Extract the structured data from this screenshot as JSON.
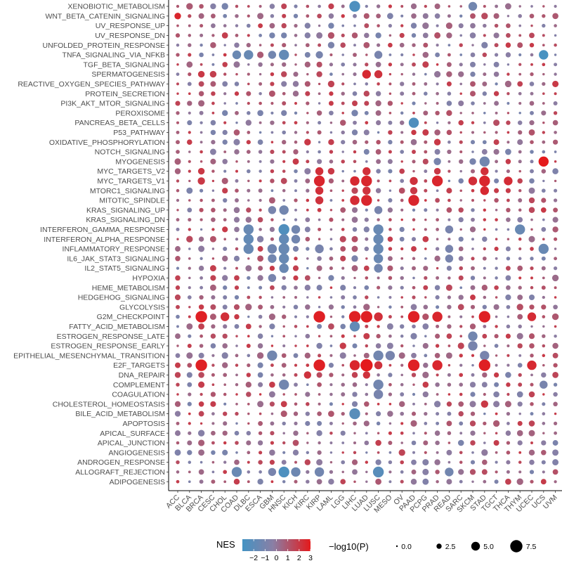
{
  "chart_data": {
    "type": "dotplot",
    "pathways": [
      "XENOBIOTIC_METABOLISM",
      "WNT_BETA_CATENIN_SIGNALING",
      "UV_RESPONSE_UP",
      "UV_RESPONSE_DN",
      "UNFOLDED_PROTEIN_RESPONSE",
      "TNFA_SIGNALING_VIA_NFKB",
      "TGF_BETA_SIGNALING",
      "SPERMATOGENESIS",
      "REACTIVE_OXYGEN_SPECIES_PATHWAY",
      "PROTEIN_SECRETION",
      "PI3K_AKT_MTOR_SIGNALING",
      "PEROXISOME",
      "PANCREAS_BETA_CELLS",
      "P53_PATHWAY",
      "OXIDATIVE_PHOSPHORYLATION",
      "NOTCH_SIGNALING",
      "MYOGENESIS",
      "MYC_TARGETS_V2",
      "MYC_TARGETS_V1",
      "MTORC1_SIGNALING",
      "MITOTIC_SPINDLE",
      "KRAS_SIGNALING_UP",
      "KRAS_SIGNALING_DN",
      "INTERFERON_GAMMA_RESPONSE",
      "INTERFERON_ALPHA_RESPONSE",
      "INFLAMMATORY_RESPONSE",
      "IL6_JAK_STAT3_SIGNALING",
      "IL2_STAT5_SIGNALING",
      "HYPOXIA",
      "HEME_METABOLISM",
      "HEDGEHOG_SIGNALING",
      "GLYCOLYSIS",
      "G2M_CHECKPOINT",
      "FATTY_ACID_METABOLISM",
      "ESTROGEN_RESPONSE_LATE",
      "ESTROGEN_RESPONSE_EARLY",
      "EPITHELIAL_MESENCHYMAL_TRANSITION",
      "E2F_TARGETS",
      "DNA_REPAIR",
      "COMPLEMENT",
      "COAGULATION",
      "CHOLESTEROL_HOMEOSTASIS",
      "BILE_ACID_METABOLISM",
      "APOPTOSIS",
      "APICAL_SURFACE",
      "APICAL_JUNCTION",
      "ANGIOGENESIS",
      "ANDROGEN_RESPONSE",
      "ALLOGRAFT_REJECTION",
      "ADIPOGENESIS"
    ],
    "cancers": [
      "ACC",
      "BLCA",
      "BRCA",
      "CESC",
      "CHOL",
      "COAD",
      "DLBC",
      "ESCA",
      "GBM",
      "HNSC",
      "KICH",
      "KIRC",
      "KIRP",
      "LAML",
      "LGG",
      "LIHC",
      "LUAD",
      "LUSC",
      "MESO",
      "OV",
      "PAAD",
      "PCPG",
      "PRAD",
      "READ",
      "SARC",
      "SKCM",
      "STAD",
      "TGCT",
      "THCA",
      "THYM",
      "UCEC",
      "UCS",
      "UVM"
    ],
    "highlights": [
      {
        "pathway": "XENOBIOTIC_METABOLISM",
        "cancer": "LIHC",
        "nes": -2.6,
        "p": 6.5
      },
      {
        "pathway": "XENOBIOTIC_METABOLISM",
        "cancer": "SKCM",
        "nes": -1.2,
        "p": 5.0
      },
      {
        "pathway": "XENOBIOTIC_METABOLISM",
        "cancer": "CHOL",
        "nes": -1.0,
        "p": 3.5
      },
      {
        "pathway": "WNT_BETA_CATENIN_SIGNALING",
        "cancer": "ACC",
        "nes": 2.6,
        "p": 3.5
      },
      {
        "pathway": "UV_RESPONSE_UP",
        "cancer": "LAML",
        "nes": -1.0,
        "p": 3.0
      },
      {
        "pathway": "UV_RESPONSE_UP",
        "cancer": "HNSC",
        "nes": 1.5,
        "p": 2.5
      },
      {
        "pathway": "UV_RESPONSE_DN",
        "cancer": "GBM",
        "nes": -1.0,
        "p": 3.0
      },
      {
        "pathway": "UV_RESPONSE_DN",
        "cancer": "HNSC",
        "nes": -1.0,
        "p": 3.0
      },
      {
        "pathway": "UV_RESPONSE_DN",
        "cancer": "LUSC",
        "nes": -1.0,
        "p": 3.0
      },
      {
        "pathway": "TNFA_SIGNALING_VIA_NFKB",
        "cancer": "UCS",
        "nes": -2.8,
        "p": 5.5
      },
      {
        "pathway": "TNFA_SIGNALING_VIA_NFKB",
        "cancer": "HNSC",
        "nes": -1.8,
        "p": 6.0
      },
      {
        "pathway": "TNFA_SIGNALING_VIA_NFKB",
        "cancer": "DLBC",
        "nes": -1.6,
        "p": 5.5
      },
      {
        "pathway": "TNFA_SIGNALING_VIA_NFKB",
        "cancer": "COAD",
        "nes": -1.5,
        "p": 5.0
      },
      {
        "pathway": "TNFA_SIGNALING_VIA_NFKB",
        "cancer": "GBM",
        "nes": -1.2,
        "p": 4.5
      },
      {
        "pathway": "TNFA_SIGNALING_VIA_NFKB",
        "cancer": "KIRP",
        "nes": -1.0,
        "p": 4.0
      },
      {
        "pathway": "TNFA_SIGNALING_VIA_NFKB",
        "cancer": "LUSC",
        "nes": -1.0,
        "p": 4.5
      },
      {
        "pathway": "SPERMATOGENESIS",
        "cancer": "LUAD",
        "nes": 2.5,
        "p": 5.0
      },
      {
        "pathway": "SPERMATOGENESIS",
        "cancer": "LUSC",
        "nes": 2.2,
        "p": 4.5
      },
      {
        "pathway": "SPERMATOGENESIS",
        "cancer": "BRCA",
        "nes": 2.0,
        "p": 3.5
      },
      {
        "pathway": "SPERMATOGENESIS",
        "cancer": "CESC",
        "nes": 1.8,
        "p": 3.5
      },
      {
        "pathway": "SPERMATOGENESIS",
        "cancer": "HNSC",
        "nes": 1.5,
        "p": 3.0
      },
      {
        "pathway": "SPERMATOGENESIS",
        "cancer": "KIRP",
        "nes": 1.5,
        "p": 3.0
      },
      {
        "pathway": "PROTEIN_SECRETION",
        "cancer": "LUAD",
        "nes": 1.5,
        "p": 3.0
      },
      {
        "pathway": "PEROXISOME",
        "cancer": "CHOL",
        "nes": -1.0,
        "p": 3.0
      },
      {
        "pathway": "PEROXISOME",
        "cancer": "LIHC",
        "nes": -1.0,
        "p": 3.5
      },
      {
        "pathway": "PANCREAS_BETA_CELLS",
        "cancer": "PAAD",
        "nes": -2.5,
        "p": 6.0
      },
      {
        "pathway": "OXIDATIVE_PHOSPHORYLATION",
        "cancer": "KIRC",
        "nes": 2.0,
        "p": 3.5
      },
      {
        "pathway": "OXIDATIVE_PHOSPHORYLATION",
        "cancer": "LAML",
        "nes": 1.8,
        "p": 3.0
      },
      {
        "pathway": "OXIDATIVE_PHOSPHORYLATION",
        "cancer": "PRAD",
        "nes": 2.0,
        "p": 3.5
      },
      {
        "pathway": "MYOGENESIS",
        "cancer": "UCS",
        "nes": 3.0,
        "p": 6.0
      },
      {
        "pathway": "MYOGENESIS",
        "cancer": "STAD",
        "nes": -1.2,
        "p": 6.0
      },
      {
        "pathway": "MYOGENESIS",
        "cancer": "PRAD",
        "nes": -1.0,
        "p": 4.0
      },
      {
        "pathway": "MYOGENESIS",
        "cancer": "SKCM",
        "nes": -1.0,
        "p": 3.5
      },
      {
        "pathway": "MYC_TARGETS_V2",
        "cancer": "KIRP",
        "nes": 2.3,
        "p": 4.5
      },
      {
        "pathway": "MYC_TARGETS_V2",
        "cancer": "LUAD",
        "nes": 2.3,
        "p": 4.5
      },
      {
        "pathway": "MYC_TARGETS_V2",
        "cancer": "STAD",
        "nes": 2.3,
        "p": 4.5
      },
      {
        "pathway": "MYC_TARGETS_V2",
        "cancer": "BRCA",
        "nes": 2.0,
        "p": 3.5
      },
      {
        "pathway": "MYC_TARGETS_V2",
        "cancer": "LAML",
        "nes": 2.0,
        "p": 3.5
      },
      {
        "pathway": "MYC_TARGETS_V2",
        "cancer": "PRAD",
        "nes": 2.0,
        "p": 3.5
      },
      {
        "pathway": "MYC_TARGETS_V1",
        "cancer": "KIRP",
        "nes": 2.6,
        "p": 6.5
      },
      {
        "pathway": "MYC_TARGETS_V1",
        "cancer": "LUAD",
        "nes": 2.6,
        "p": 6.5
      },
      {
        "pathway": "MYC_TARGETS_V1",
        "cancer": "PRAD",
        "nes": 2.6,
        "p": 6.5
      },
      {
        "pathway": "MYC_TARGETS_V1",
        "cancer": "STAD",
        "nes": 2.6,
        "p": 6.5
      },
      {
        "pathway": "MYC_TARGETS_V1",
        "cancer": "LIHC",
        "nes": 2.5,
        "p": 5.5
      },
      {
        "pathway": "MYC_TARGETS_V1",
        "cancer": "THCA",
        "nes": 2.4,
        "p": 5.0
      },
      {
        "pathway": "MYC_TARGETS_V1",
        "cancer": "SKCM",
        "nes": 2.3,
        "p": 5.0
      },
      {
        "pathway": "MYC_TARGETS_V1",
        "cancer": "PAAD",
        "nes": 2.2,
        "p": 4.5
      },
      {
        "pathway": "MYC_TARGETS_V1",
        "cancer": "BRCA",
        "nes": 2.0,
        "p": 4.0
      },
      {
        "pathway": "MTORC1_SIGNALING",
        "cancer": "STAD",
        "nes": 2.5,
        "p": 5.0
      },
      {
        "pathway": "MTORC1_SIGNALING",
        "cancer": "KIRP",
        "nes": 2.3,
        "p": 4.5
      },
      {
        "pathway": "MTORC1_SIGNALING",
        "cancer": "LUAD",
        "nes": 2.2,
        "p": 4.5
      },
      {
        "pathway": "MTORC1_SIGNALING",
        "cancer": "PAAD",
        "nes": 2.0,
        "p": 4.0
      },
      {
        "pathway": "MITOTIC_SPINDLE",
        "cancer": "PAAD",
        "nes": 2.6,
        "p": 6.5
      },
      {
        "pathway": "MITOTIC_SPINDLE",
        "cancer": "LUAD",
        "nes": 2.6,
        "p": 6.5
      },
      {
        "pathway": "MITOTIC_SPINDLE",
        "cancer": "LIHC",
        "nes": 2.4,
        "p": 5.5
      },
      {
        "pathway": "MITOTIC_SPINDLE",
        "cancer": "KIRP",
        "nes": 2.2,
        "p": 4.5
      },
      {
        "pathway": "KRAS_SIGNALING_UP",
        "cancer": "HNSC",
        "nes": -1.2,
        "p": 5.5
      },
      {
        "pathway": "KRAS_SIGNALING_UP",
        "cancer": "GBM",
        "nes": -1.0,
        "p": 4.5
      },
      {
        "pathway": "KRAS_SIGNALING_UP",
        "cancer": "LUSC",
        "nes": -1.0,
        "p": 4.5
      },
      {
        "pathway": "INTERFERON_GAMMA_RESPONSE",
        "cancer": "HNSC",
        "nes": -2.5,
        "p": 6.5
      },
      {
        "pathway": "INTERFERON_GAMMA_RESPONSE",
        "cancer": "THYM",
        "nes": -1.6,
        "p": 6.0
      },
      {
        "pathway": "INTERFERON_GAMMA_RESPONSE",
        "cancer": "LUSC",
        "nes": -1.6,
        "p": 6.0
      },
      {
        "pathway": "INTERFERON_GAMMA_RESPONSE",
        "cancer": "DLBC",
        "nes": -1.6,
        "p": 6.0
      },
      {
        "pathway": "INTERFERON_GAMMA_RESPONSE",
        "cancer": "KICH",
        "nes": -1.2,
        "p": 5.0
      },
      {
        "pathway": "INTERFERON_GAMMA_RESPONSE",
        "cancer": "READ",
        "nes": -1.0,
        "p": 4.5
      },
      {
        "pathway": "INTERFERON_ALPHA_RESPONSE",
        "cancer": "DLBC",
        "nes": -1.8,
        "p": 6.0
      },
      {
        "pathway": "INTERFERON_ALPHA_RESPONSE",
        "cancer": "HNSC",
        "nes": -1.8,
        "p": 6.0
      },
      {
        "pathway": "INTERFERON_ALPHA_RESPONSE",
        "cancer": "LUSC",
        "nes": -1.6,
        "p": 6.0
      },
      {
        "pathway": "INTERFERON_ALPHA_RESPONSE",
        "cancer": "KICH",
        "nes": -1.2,
        "p": 5.0
      },
      {
        "pathway": "INFLAMMATORY_RESPONSE",
        "cancer": "HNSC",
        "nes": -1.6,
        "p": 6.5
      },
      {
        "pathway": "INFLAMMATORY_RESPONSE",
        "cancer": "DLBC",
        "nes": -1.6,
        "p": 6.0
      },
      {
        "pathway": "INFLAMMATORY_RESPONSE",
        "cancer": "LUSC",
        "nes": -1.6,
        "p": 6.0
      },
      {
        "pathway": "INFLAMMATORY_RESPONSE",
        "cancer": "UCS",
        "nes": -1.6,
        "p": 6.0
      },
      {
        "pathway": "INFLAMMATORY_RESPONSE",
        "cancer": "GBM",
        "nes": -1.2,
        "p": 5.5
      },
      {
        "pathway": "INFLAMMATORY_RESPONSE",
        "cancer": "KIRP",
        "nes": -1.0,
        "p": 5.0
      },
      {
        "pathway": "INFLAMMATORY_RESPONSE",
        "cancer": "READ",
        "nes": -1.0,
        "p": 4.5
      },
      {
        "pathway": "IL6_JAK_STAT3_SIGNALING",
        "cancer": "HNSC",
        "nes": -1.6,
        "p": 6.0
      },
      {
        "pathway": "IL6_JAK_STAT3_SIGNALING",
        "cancer": "LUSC",
        "nes": -1.5,
        "p": 5.5
      },
      {
        "pathway": "IL6_JAK_STAT3_SIGNALING",
        "cancer": "GBM",
        "nes": -1.2,
        "p": 5.0
      },
      {
        "pathway": "IL6_JAK_STAT3_SIGNALING",
        "cancer": "READ",
        "nes": -1.0,
        "p": 4.5
      },
      {
        "pathway": "IL2_STAT5_SIGNALING",
        "cancer": "HNSC",
        "nes": -1.5,
        "p": 5.5
      },
      {
        "pathway": "IL2_STAT5_SIGNALING",
        "cancer": "LUSC",
        "nes": -1.2,
        "p": 5.0
      },
      {
        "pathway": "HYPOXIA",
        "cancer": "GBM",
        "nes": -1.0,
        "p": 4.5
      },
      {
        "pathway": "G2M_CHECKPOINT",
        "cancer": "BRCA",
        "nes": 2.8,
        "p": 7.0
      },
      {
        "pathway": "G2M_CHECKPOINT",
        "cancer": "KIRP",
        "nes": 2.8,
        "p": 7.0
      },
      {
        "pathway": "G2M_CHECKPOINT",
        "cancer": "LIHC",
        "nes": 2.8,
        "p": 7.0
      },
      {
        "pathway": "G2M_CHECKPOINT",
        "cancer": "LUAD",
        "nes": 2.8,
        "p": 7.0
      },
      {
        "pathway": "G2M_CHECKPOINT",
        "cancer": "PAAD",
        "nes": 2.8,
        "p": 7.0
      },
      {
        "pathway": "G2M_CHECKPOINT",
        "cancer": "STAD",
        "nes": 2.8,
        "p": 7.0
      },
      {
        "pathway": "G2M_CHECKPOINT",
        "cancer": "PRAD",
        "nes": 2.6,
        "p": 6.0
      },
      {
        "pathway": "G2M_CHECKPOINT",
        "cancer": "UCEC",
        "nes": 2.4,
        "p": 5.0
      },
      {
        "pathway": "G2M_CHECKPOINT",
        "cancer": "LUSC",
        "nes": 2.3,
        "p": 5.0
      },
      {
        "pathway": "G2M_CHECKPOINT",
        "cancer": "CHOL",
        "nes": 2.3,
        "p": 5.0
      },
      {
        "pathway": "FATTY_ACID_METABOLISM",
        "cancer": "LIHC",
        "nes": -1.8,
        "p": 6.0
      },
      {
        "pathway": "ESTROGEN_RESPONSE_LATE",
        "cancer": "SKCM",
        "nes": -1.2,
        "p": 5.5
      },
      {
        "pathway": "ESTROGEN_RESPONSE_EARLY",
        "cancer": "SKCM",
        "nes": -1.0,
        "p": 5.5
      },
      {
        "pathway": "EPITHELIAL_MESENCHYMAL_TRANSITION",
        "cancer": "GBM",
        "nes": -1.2,
        "p": 6.0
      },
      {
        "pathway": "EPITHELIAL_MESENCHYMAL_TRANSITION",
        "cancer": "LUSC",
        "nes": -1.2,
        "p": 6.0
      },
      {
        "pathway": "EPITHELIAL_MESENCHYMAL_TRANSITION",
        "cancer": "MESO",
        "nes": -1.0,
        "p": 5.5
      },
      {
        "pathway": "EPITHELIAL_MESENCHYMAL_TRANSITION",
        "cancer": "STAD",
        "nes": -1.0,
        "p": 5.5
      },
      {
        "pathway": "E2F_TARGETS",
        "cancer": "LUAD",
        "nes": 3.0,
        "p": 7.5
      },
      {
        "pathway": "E2F_TARGETS",
        "cancer": "BRCA",
        "nes": 2.8,
        "p": 7.0
      },
      {
        "pathway": "E2F_TARGETS",
        "cancer": "KIRP",
        "nes": 2.8,
        "p": 7.0
      },
      {
        "pathway": "E2F_TARGETS",
        "cancer": "PAAD",
        "nes": 2.8,
        "p": 7.0
      },
      {
        "pathway": "E2F_TARGETS",
        "cancer": "STAD",
        "nes": 2.8,
        "p": 7.0
      },
      {
        "pathway": "E2F_TARGETS",
        "cancer": "LIHC",
        "nes": 2.6,
        "p": 6.0
      },
      {
        "pathway": "E2F_TARGETS",
        "cancer": "PRAD",
        "nes": 2.6,
        "p": 6.0
      },
      {
        "pathway": "E2F_TARGETS",
        "cancer": "UCEC",
        "nes": 2.5,
        "p": 5.5
      },
      {
        "pathway": "E2F_TARGETS",
        "cancer": "LUSC",
        "nes": 2.2,
        "p": 4.5
      },
      {
        "pathway": "DNA_REPAIR",
        "cancer": "KIRC",
        "nes": 2.2,
        "p": 4.0
      },
      {
        "pathway": "DNA_REPAIR",
        "cancer": "LUAD",
        "nes": 2.2,
        "p": 4.0
      },
      {
        "pathway": "COMPLEMENT",
        "cancer": "HNSC",
        "nes": -1.2,
        "p": 6.0
      },
      {
        "pathway": "COMPLEMENT",
        "cancer": "LUSC",
        "nes": -1.2,
        "p": 6.0
      },
      {
        "pathway": "COMPLEMENT",
        "cancer": "UCS",
        "nes": -1.0,
        "p": 4.5
      },
      {
        "pathway": "COAGULATION",
        "cancer": "LUSC",
        "nes": -1.0,
        "p": 5.5
      },
      {
        "pathway": "CHOLESTEROL_HOMEOSTASIS",
        "cancer": "STAD",
        "nes": 2.0,
        "p": 4.0
      },
      {
        "pathway": "BILE_ACID_METABOLISM",
        "cancer": "LIHC",
        "nes": -2.2,
        "p": 6.5
      },
      {
        "pathway": "ALLOGRAFT_REJECTION",
        "cancer": "HNSC",
        "nes": -2.6,
        "p": 6.5
      },
      {
        "pathway": "ALLOGRAFT_REJECTION",
        "cancer": "LUSC",
        "nes": -2.2,
        "p": 6.5
      },
      {
        "pathway": "ALLOGRAFT_REJECTION",
        "cancer": "COAD",
        "nes": -1.6,
        "p": 6.0
      },
      {
        "pathway": "ALLOGRAFT_REJECTION",
        "cancer": "KICH",
        "nes": -1.4,
        "p": 5.5
      },
      {
        "pathway": "ALLOGRAFT_REJECTION",
        "cancer": "KIRP",
        "nes": -1.2,
        "p": 5.5
      },
      {
        "pathway": "ALLOGRAFT_REJECTION",
        "cancer": "READ",
        "nes": -1.2,
        "p": 5.0
      },
      {
        "pathway": "ALLOGRAFT_REJECTION",
        "cancer": "GBM",
        "nes": -1.0,
        "p": 4.5
      }
    ],
    "default_point": {
      "nes_range": [
        -1.0,
        2.0
      ],
      "p_range": [
        0.5,
        3.5
      ]
    },
    "x_tick_labels_angle": 45,
    "legend": {
      "color_title": "NES",
      "color_ticks": [
        "-2",
        "-1",
        "0",
        "1",
        "2",
        "3"
      ],
      "color_range": [
        -3,
        3
      ],
      "color_low": "#4393c3",
      "color_mid": "#8a7fa5",
      "color_high": "#e41a1c",
      "size_title": "−log10(P)",
      "size_values": [
        0.0,
        2.5,
        5.0,
        7.5
      ],
      "size_labels": [
        "0.0",
        "2.5",
        "5.0",
        "7.5"
      ],
      "placement": "bottom"
    },
    "grid": false
  }
}
